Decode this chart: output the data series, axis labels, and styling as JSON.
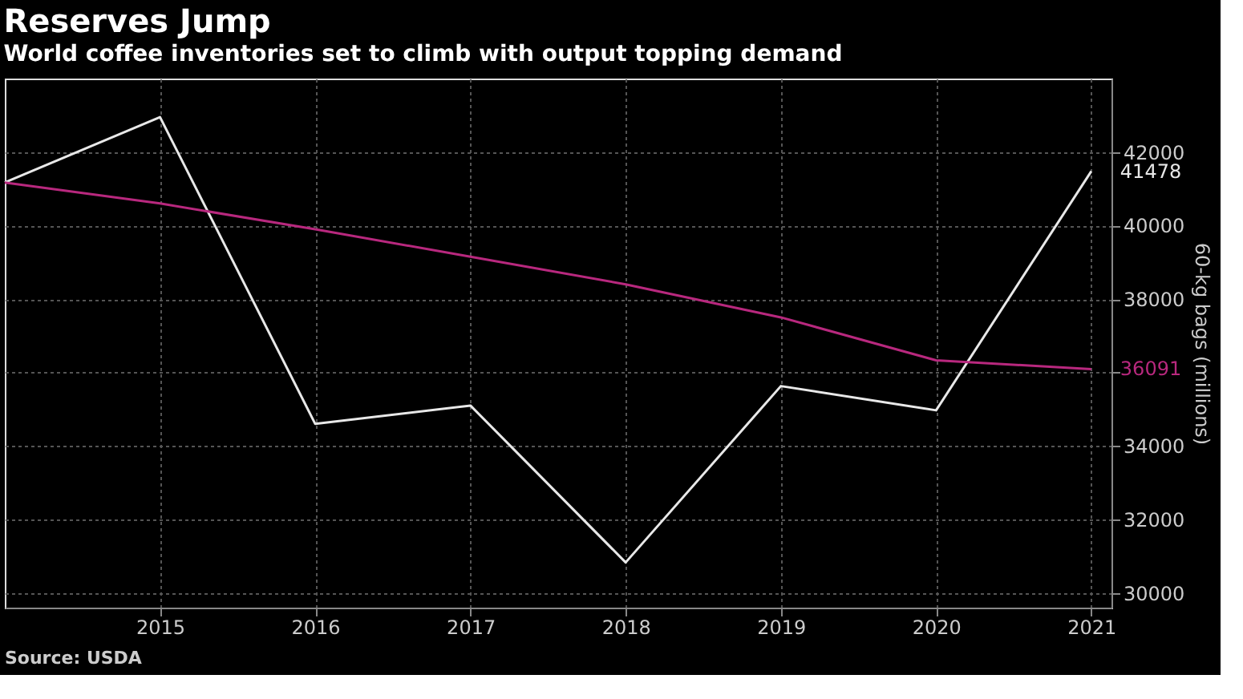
{
  "chart_data": {
    "type": "line",
    "title": "Reserves Jump",
    "subtitle": "World coffee inventories set to climb with output topping demand",
    "ylabel": "60-kg bags (millions)",
    "x": [
      2014,
      2015,
      2016,
      2017,
      2018,
      2019,
      2020,
      2021
    ],
    "series": [
      {
        "color": "#e8e8e8",
        "values": [
          41170,
          42950,
          34600,
          35100,
          30830,
          35630,
          34970,
          41478
        ],
        "value_labels": [
          null,
          null,
          null,
          null,
          null,
          null,
          null,
          "41478"
        ]
      },
      {
        "color": "#b8287e",
        "values": [
          41170,
          40600,
          39900,
          39150,
          38400,
          37500,
          36330,
          36091
        ],
        "value_labels": [
          null,
          null,
          null,
          null,
          null,
          null,
          null,
          "36091"
        ]
      }
    ],
    "xlim": [
      2014,
      2021.13
    ],
    "xticks": [
      2015,
      2016,
      2017,
      2018,
      2019,
      2020,
      2021
    ],
    "ylim": [
      29600,
      44000
    ],
    "yticks": [
      30000,
      32000,
      34000,
      {
        "value": 36000,
        "label": null
      },
      38000,
      40000,
      42000
    ],
    "grid": true,
    "marker": "none",
    "line_style": "solid",
    "annotations": [
      "Source: USDA"
    ]
  }
}
